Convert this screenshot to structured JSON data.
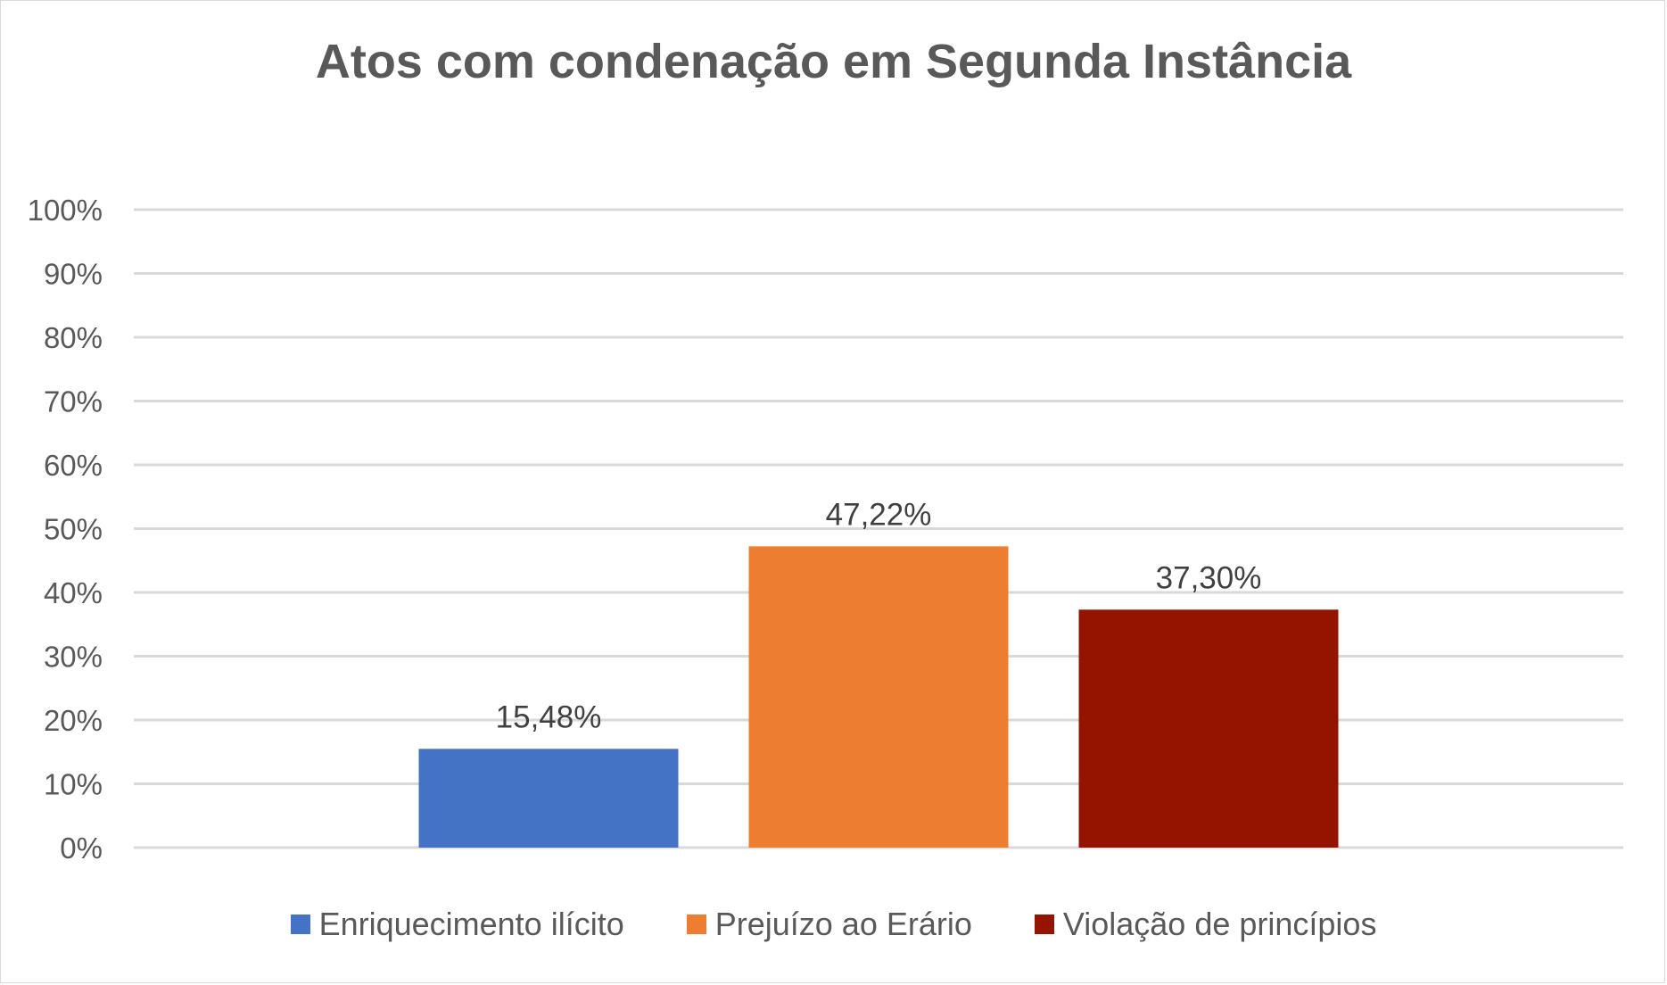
{
  "chart_data": {
    "type": "bar",
    "title": "Atos com condenação em Segunda Instância",
    "categories": [
      "Enriquecimento ilícito",
      "Prejuízo ao Erário",
      "Violação de princípios"
    ],
    "values": [
      15.48,
      47.22,
      37.3
    ],
    "data_labels": [
      "15,48%",
      "47,22%",
      "37,30%"
    ],
    "colors": [
      "#4472c4",
      "#ed7d31",
      "#951400"
    ],
    "ylim": [
      0,
      100
    ],
    "yticks": [
      0,
      10,
      20,
      30,
      40,
      50,
      60,
      70,
      80,
      90,
      100
    ],
    "ytick_labels": [
      "0%",
      "10%",
      "20%",
      "30%",
      "40%",
      "50%",
      "60%",
      "70%",
      "80%",
      "90%",
      "100%"
    ],
    "grid": true,
    "legend_position": "bottom",
    "xlabel": "",
    "ylabel": ""
  }
}
